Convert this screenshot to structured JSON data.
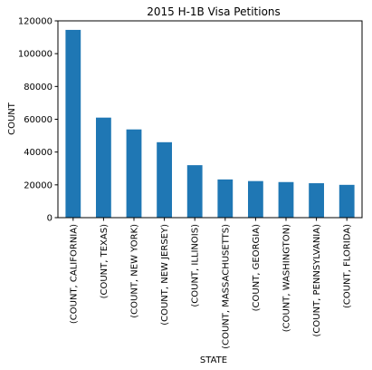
{
  "chart_data": {
    "type": "bar",
    "title": "2015 H-1B Visa Petitions",
    "xlabel": "STATE",
    "ylabel": "COUNT",
    "categories": [
      "(COUNT,  CALIFORNIA)",
      "(COUNT,  TEXAS)",
      "(COUNT,  NEW YORK)",
      "(COUNT,  NEW JERSEY)",
      "(COUNT,  ILLINOIS)",
      "(COUNT,  MASSACHUSETTS)",
      "(COUNT,  GEORGIA)",
      "(COUNT,  WASHINGTON)",
      "(COUNT,  PENNSYLVANIA)",
      "(COUNT,  FLORIDA)"
    ],
    "values": [
      114500,
      61000,
      53800,
      46000,
      32000,
      23300,
      22300,
      21700,
      21000,
      20000
    ],
    "ylim": [
      0,
      120000
    ],
    "yticks": [
      0,
      20000,
      40000,
      60000,
      80000,
      100000,
      120000
    ],
    "grid": false,
    "legend": "none",
    "colors": {
      "bar": "#1f77b4",
      "axis": "#000000",
      "background": "#ffffff"
    }
  }
}
